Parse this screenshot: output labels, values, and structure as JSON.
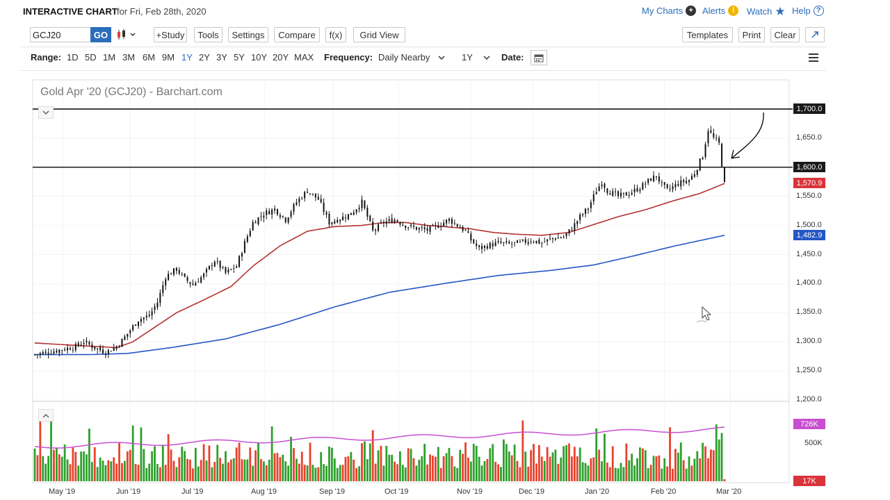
{
  "header": {
    "title": "INTERACTIVE CHART",
    "date_text": "for Fri, Feb 28th, 2020",
    "links": {
      "my_charts": "My Charts",
      "alerts": "Alerts",
      "watch": "Watch",
      "help": "Help"
    }
  },
  "toolbar": {
    "symbol_value": "GCJ20",
    "go_label": "GO",
    "study_label": "+Study",
    "tools_label": "Tools",
    "settings_label": "Settings",
    "compare_label": "Compare",
    "fx_label": "f(x)",
    "grid_view_label": "Grid View",
    "templates_label": "Templates",
    "print_label": "Print",
    "clear_label": "Clear"
  },
  "range_bar": {
    "range_label": "Range:",
    "ranges": [
      "1D",
      "5D",
      "1M",
      "3M",
      "6M",
      "9M",
      "1Y",
      "2Y",
      "3Y",
      "5Y",
      "10Y",
      "20Y",
      "MAX"
    ],
    "active_range": "1Y",
    "frequency_label": "Frequency:",
    "frequency_value": "Daily Nearby",
    "period_value": "1Y",
    "date_label": "Date:"
  },
  "colors": {
    "accent": "#2a6ebb",
    "ma_50": "#b33030",
    "ma_200": "#2456c4",
    "volume_up": "#2ca02c",
    "volume_down": "#e8412c",
    "volume_avg": "#c84fd0",
    "annotation": "#000000"
  },
  "icons": {
    "candlestick": "candlestick-icon",
    "fullscreen": "expand-icon",
    "calendar": "calendar-icon",
    "menu": "hamburger-menu-icon"
  },
  "chart_data": {
    "type": "candlestick",
    "title": "Gold Apr '20 (GCJ20) - Barchart.com",
    "x_labels": [
      "May '19",
      "Jun '19",
      "Jul '19",
      "Aug '19",
      "Sep '19",
      "Oct '19",
      "Nov '19",
      "Dec '19",
      "Jan '20",
      "Feb '20",
      "Mar '20"
    ],
    "y_ticks": [
      1200,
      1250,
      1300,
      1350,
      1400,
      1450,
      1500,
      1550,
      1600,
      1650,
      1700
    ],
    "ylim": [
      1190,
      1720
    ],
    "y_tick_labels": [
      "1,200.0",
      "1,250.0",
      "1,300.0",
      "1,350.0",
      "1,400.0",
      "1,450.0",
      "1,500.0",
      "1,550.0",
      "1,600.0",
      "1,650.0",
      "1,700.0"
    ],
    "horizontal_lines": [
      1700,
      1600
    ],
    "horizontal_line_labels": [
      "1,700.0",
      "1,600.0"
    ],
    "last_price": 1570.9,
    "last_price_label": "1,570.9",
    "ma200_last": 1482.9,
    "ma200_last_label": "1,482.9",
    "close_anchors": [
      [
        0,
        1278
      ],
      [
        8,
        1285
      ],
      [
        15,
        1292
      ],
      [
        18,
        1300
      ],
      [
        22,
        1290
      ],
      [
        26,
        1282
      ],
      [
        30,
        1292
      ],
      [
        32,
        1302
      ],
      [
        35,
        1320
      ],
      [
        38,
        1338
      ],
      [
        42,
        1345
      ],
      [
        45,
        1368
      ],
      [
        48,
        1412
      ],
      [
        52,
        1425
      ],
      [
        55,
        1408
      ],
      [
        58,
        1398
      ],
      [
        62,
        1415
      ],
      [
        66,
        1440
      ],
      [
        70,
        1418
      ],
      [
        74,
        1430
      ],
      [
        77,
        1470
      ],
      [
        80,
        1505
      ],
      [
        84,
        1520
      ],
      [
        88,
        1528
      ],
      [
        92,
        1510
      ],
      [
        96,
        1540
      ],
      [
        100,
        1560
      ],
      [
        104,
        1545
      ],
      [
        108,
        1505
      ],
      [
        112,
        1512
      ],
      [
        116,
        1520
      ],
      [
        120,
        1540
      ],
      [
        124,
        1490
      ],
      [
        128,
        1505
      ],
      [
        132,
        1510
      ],
      [
        136,
        1500
      ],
      [
        140,
        1495
      ],
      [
        144,
        1492
      ],
      [
        148,
        1500
      ],
      [
        152,
        1510
      ],
      [
        155,
        1500
      ],
      [
        158,
        1490
      ],
      [
        160,
        1475
      ],
      [
        163,
        1460
      ],
      [
        166,
        1465
      ],
      [
        170,
        1470
      ],
      [
        174,
        1468
      ],
      [
        178,
        1470
      ],
      [
        182,
        1475
      ],
      [
        186,
        1470
      ],
      [
        190,
        1478
      ],
      [
        194,
        1480
      ],
      [
        197,
        1495
      ],
      [
        200,
        1515
      ],
      [
        203,
        1530
      ],
      [
        206,
        1560
      ],
      [
        208,
        1575
      ],
      [
        210,
        1560
      ],
      [
        214,
        1550
      ],
      [
        218,
        1555
      ],
      [
        222,
        1565
      ],
      [
        226,
        1580
      ],
      [
        228,
        1585
      ],
      [
        230,
        1570
      ],
      [
        232,
        1560
      ],
      [
        236,
        1572
      ],
      [
        240,
        1578
      ],
      [
        242,
        1590
      ],
      [
        245,
        1620
      ],
      [
        247,
        1665
      ],
      [
        249,
        1650
      ],
      [
        251,
        1640
      ],
      [
        253,
        1571
      ]
    ],
    "ma50_anchors": [
      [
        0,
        1298
      ],
      [
        18,
        1293
      ],
      [
        30,
        1290
      ],
      [
        36,
        1300
      ],
      [
        44,
        1325
      ],
      [
        52,
        1350
      ],
      [
        62,
        1372
      ],
      [
        72,
        1395
      ],
      [
        80,
        1430
      ],
      [
        90,
        1465
      ],
      [
        100,
        1490
      ],
      [
        110,
        1498
      ],
      [
        120,
        1500
      ],
      [
        128,
        1505
      ],
      [
        136,
        1505
      ],
      [
        144,
        1500
      ],
      [
        150,
        1498
      ],
      [
        160,
        1494
      ],
      [
        168,
        1488
      ],
      [
        176,
        1485
      ],
      [
        186,
        1483
      ],
      [
        196,
        1488
      ],
      [
        204,
        1500
      ],
      [
        214,
        1515
      ],
      [
        224,
        1527
      ],
      [
        234,
        1542
      ],
      [
        244,
        1555
      ],
      [
        253,
        1572
      ]
    ],
    "ma200_anchors": [
      [
        0,
        1278
      ],
      [
        20,
        1278
      ],
      [
        34,
        1280
      ],
      [
        50,
        1290
      ],
      [
        70,
        1305
      ],
      [
        90,
        1330
      ],
      [
        110,
        1360
      ],
      [
        130,
        1385
      ],
      [
        150,
        1400
      ],
      [
        170,
        1414
      ],
      [
        190,
        1423
      ],
      [
        205,
        1432
      ],
      [
        220,
        1448
      ],
      [
        235,
        1465
      ],
      [
        253,
        1483
      ]
    ],
    "volume_avg_label": "726K",
    "volume_ticks": [
      "500K"
    ],
    "volume_min_label": "17K"
  }
}
